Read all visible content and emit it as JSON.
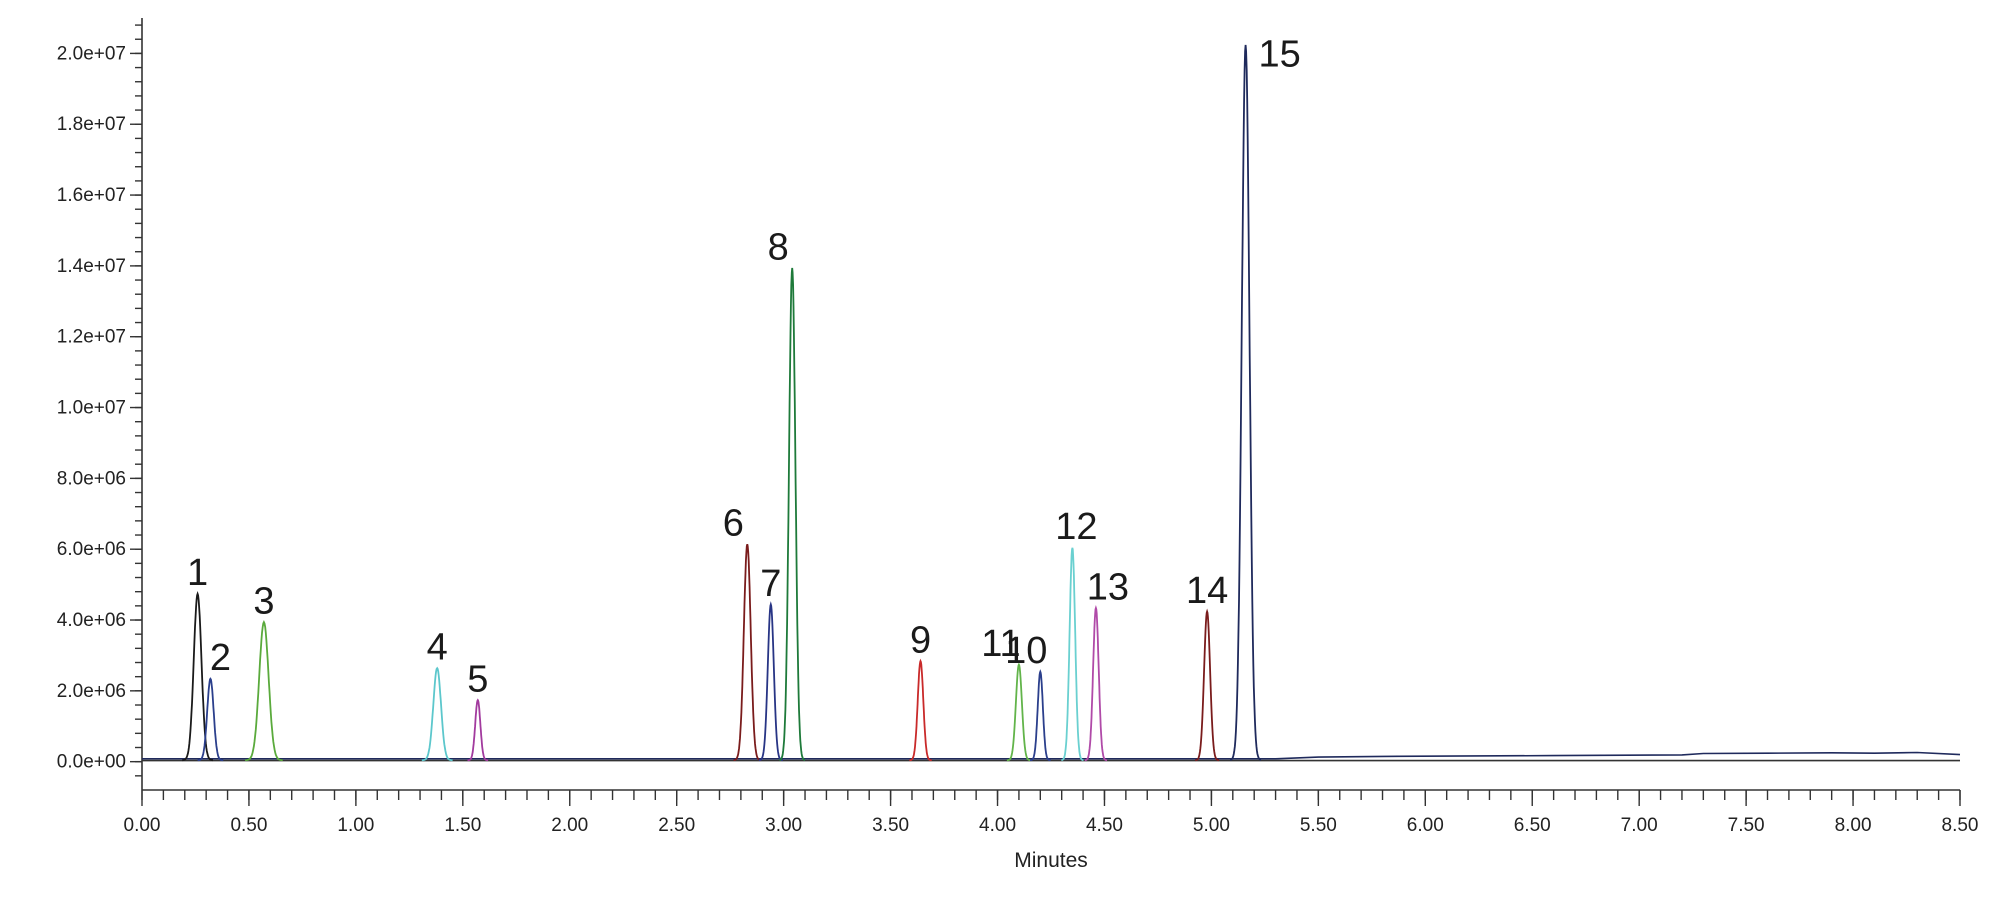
{
  "chart_data": {
    "type": "line",
    "title": "",
    "xlabel": "Minutes",
    "ylabel": "",
    "xlim": [
      0,
      8.5
    ],
    "ylim": [
      -800000,
      21000000
    ],
    "grid": false,
    "legend": "none",
    "x_ticks": [
      "0.00",
      "0.50",
      "1.00",
      "1.50",
      "2.00",
      "2.50",
      "3.00",
      "3.50",
      "4.00",
      "4.50",
      "5.00",
      "5.50",
      "6.00",
      "6.50",
      "7.00",
      "7.50",
      "8.00",
      "8.50"
    ],
    "x_tick_values": [
      0,
      0.5,
      1,
      1.5,
      2,
      2.5,
      3,
      3.5,
      4,
      4.5,
      5,
      5.5,
      6,
      6.5,
      7,
      7.5,
      8,
      8.5
    ],
    "y_ticks": [
      "0.0e+00",
      "2.0e+06",
      "4.0e+06",
      "6.0e+06",
      "8.0e+06",
      "1.0e+07",
      "1.2e+07",
      "1.4e+07",
      "1.6e+07",
      "1.8e+07",
      "2.0e+07"
    ],
    "y_tick_values": [
      0,
      2000000,
      4000000,
      6000000,
      8000000,
      10000000,
      12000000,
      14000000,
      16000000,
      18000000,
      20000000
    ],
    "baseline_series": [
      {
        "color": "#1f2a5c",
        "points": [
          [
            0,
            80000
          ],
          [
            5.3,
            80000
          ],
          [
            5.5,
            130000
          ],
          [
            5.8,
            150000
          ],
          [
            6.6,
            170000
          ],
          [
            7.2,
            190000
          ],
          [
            7.3,
            230000
          ],
          [
            7.6,
            240000
          ],
          [
            7.9,
            250000
          ],
          [
            8.1,
            240000
          ],
          [
            8.3,
            260000
          ],
          [
            8.5,
            200000
          ]
        ]
      },
      {
        "color": "#333333",
        "points": [
          [
            0,
            30000
          ],
          [
            8.5,
            30000
          ]
        ]
      }
    ],
    "peaks": [
      {
        "label": "1",
        "rt": 0.26,
        "height": 4700000,
        "width": 0.018,
        "color": "#1a1a1a"
      },
      {
        "label": "2",
        "rt": 0.32,
        "height": 2300000,
        "width": 0.015,
        "color": "#2b3f8c"
      },
      {
        "label": "3",
        "rt": 0.57,
        "height": 3900000,
        "width": 0.022,
        "color": "#5aaa3c"
      },
      {
        "label": "4",
        "rt": 1.38,
        "height": 2600000,
        "width": 0.018,
        "color": "#5cc7cc"
      },
      {
        "label": "5",
        "rt": 1.57,
        "height": 1700000,
        "width": 0.012,
        "color": "#a23a9e"
      },
      {
        "label": "6",
        "rt": 2.83,
        "height": 6100000,
        "width": 0.016,
        "color": "#7a1c1c"
      },
      {
        "label": "7",
        "rt": 2.94,
        "height": 4400000,
        "width": 0.014,
        "color": "#283585"
      },
      {
        "label": "8",
        "rt": 3.04,
        "height": 13900000,
        "width": 0.015,
        "color": "#1e7a3a"
      },
      {
        "label": "9",
        "rt": 3.64,
        "height": 2800000,
        "width": 0.013,
        "color": "#c92a2a"
      },
      {
        "label": "11",
        "rt": 4.1,
        "height": 2700000,
        "width": 0.014,
        "color": "#62b44a"
      },
      {
        "label": "10",
        "rt": 4.2,
        "height": 2500000,
        "width": 0.012,
        "color": "#2b3f8c"
      },
      {
        "label": "12",
        "rt": 4.35,
        "height": 6000000,
        "width": 0.013,
        "color": "#6ad0d0"
      },
      {
        "label": "13",
        "rt": 4.46,
        "height": 4300000,
        "width": 0.013,
        "color": "#b04aa8"
      },
      {
        "label": "14",
        "rt": 4.98,
        "height": 4200000,
        "width": 0.014,
        "color": "#7a1c1c"
      },
      {
        "label": "15",
        "rt": 5.16,
        "height": 20200000,
        "width": 0.018,
        "color": "#1f2a5c"
      }
    ]
  }
}
